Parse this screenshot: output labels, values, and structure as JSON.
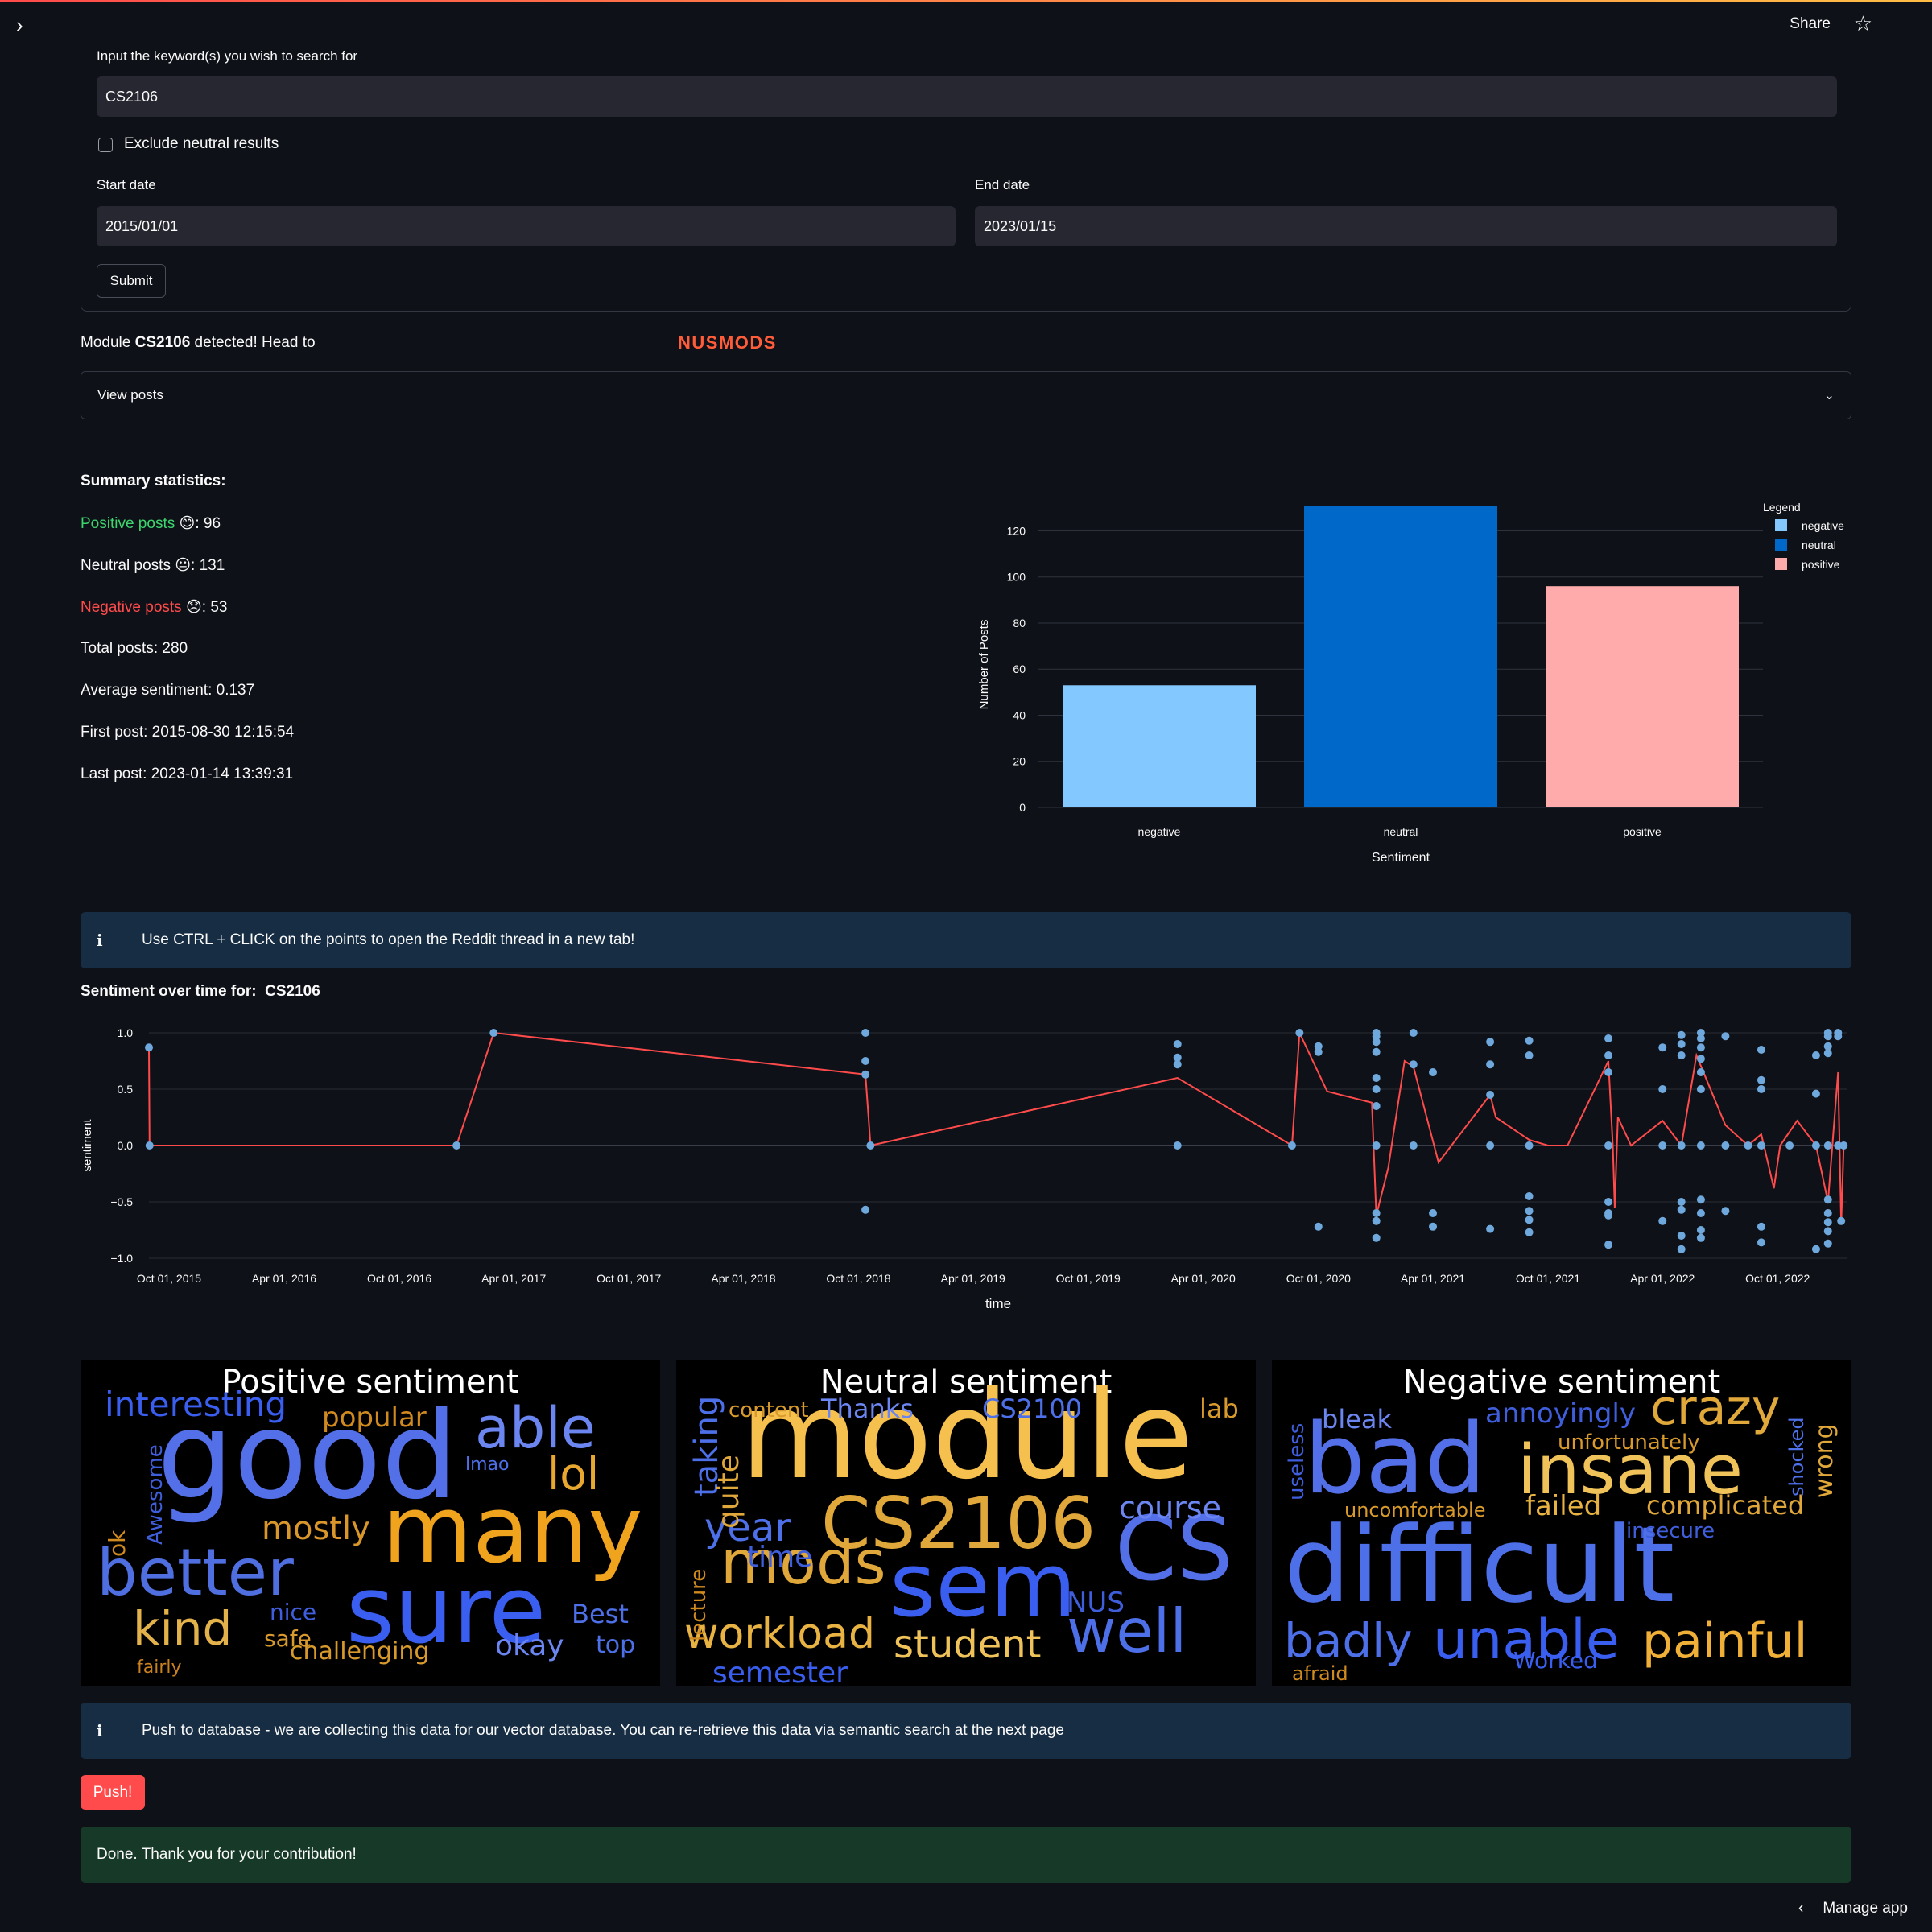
{
  "header": {
    "share": "Share"
  },
  "form": {
    "keyword_label": "Input the keyword(s) you wish to search for",
    "keyword_value": "CS2106",
    "exclude_label": "Exclude neutral results",
    "start_label": "Start date",
    "start_value": "2015/01/01",
    "end_label": "End date",
    "end_value": "2023/01/15",
    "submit": "Submit"
  },
  "detect": {
    "prefix": "Module ",
    "module": "CS2106",
    "suffix": " detected! Head to",
    "link": "NUSMODS"
  },
  "expander": {
    "label": "View posts"
  },
  "summary": {
    "title": "Summary statistics:",
    "positive_label": "Positive posts",
    "positive_emoji": "😊",
    "positive_value": ": 96",
    "neutral_label": "Neutral posts",
    "neutral_emoji": "😐",
    "neutral_value": ": 131",
    "negative_label": "Negative posts",
    "negative_emoji": "😞",
    "negative_value": ": 53",
    "total": "Total posts: 280",
    "average": "Average sentiment: 0.137",
    "first": "First post: 2015-08-30 12:15:54",
    "last": "Last post: 2023-01-14 13:39:31"
  },
  "colors": {
    "negative": "#83c9ff",
    "neutral": "#0068c9",
    "positive": "#ffabab",
    "line": "#ff4b4b",
    "points": "#6ea8dc",
    "accent": "#ff4b4b"
  },
  "chart_data": [
    {
      "type": "bar",
      "categories": [
        "negative",
        "neutral",
        "positive"
      ],
      "values": [
        53,
        131,
        96
      ],
      "xlabel": "Sentiment",
      "ylabel": "Number of Posts",
      "ylim": [
        0,
        131
      ],
      "yticks": [
        0,
        20,
        40,
        60,
        80,
        100,
        120
      ],
      "legend_title": "Legend",
      "legend": [
        "negative",
        "neutral",
        "positive"
      ],
      "legend_position": "top-right",
      "grid": true
    },
    {
      "type": "line",
      "title_prefix": "Sentiment over time for:",
      "title_module": "CS2106",
      "xlabel": "time",
      "ylabel": "sentiment",
      "ylim": [
        -1,
        1
      ],
      "yticks": [
        1.0,
        0.5,
        0.0,
        -0.5,
        -1.0
      ],
      "ytick_labels": [
        "1.0",
        "0.5",
        "0.0",
        "−0.5",
        "−1.0"
      ],
      "xlim": [
        "2015-08-30",
        "2023-01-20"
      ],
      "xticks": [
        "2015-10-01",
        "2016-04-01",
        "2016-10-01",
        "2017-04-01",
        "2017-10-01",
        "2018-04-01",
        "2018-10-01",
        "2019-04-01",
        "2019-10-01",
        "2020-04-01",
        "2020-10-01",
        "2021-04-01",
        "2021-10-01",
        "2022-04-01",
        "2022-10-01"
      ],
      "xtick_labels": [
        "Oct 01, 2015",
        "Apr 01, 2016",
        "Oct 01, 2016",
        "Apr 01, 2017",
        "Oct 01, 2017",
        "Apr 01, 2018",
        "Oct 01, 2018",
        "Apr 01, 2019",
        "Oct 01, 2019",
        "Apr 01, 2020",
        "Oct 01, 2020",
        "Apr 01, 2021",
        "Oct 01, 2021",
        "Apr 01, 2022",
        "Oct 01, 2022"
      ],
      "line": [
        [
          "2015-08-30",
          0.87
        ],
        [
          "2015-08-31",
          0.0
        ],
        [
          "2016-12-31",
          0.0
        ],
        [
          "2017-02-28",
          1.0
        ],
        [
          "2018-10-12",
          0.63
        ],
        [
          "2018-10-20",
          0.0
        ],
        [
          "2020-02-20",
          0.6
        ],
        [
          "2020-08-20",
          0.0
        ],
        [
          "2020-09-01",
          1.0
        ],
        [
          "2020-10-15",
          0.48
        ],
        [
          "2020-12-25",
          0.38
        ],
        [
          "2021-01-01",
          -0.62
        ],
        [
          "2021-01-20",
          -0.2
        ],
        [
          "2021-02-15",
          0.75
        ],
        [
          "2021-03-01",
          0.7
        ],
        [
          "2021-04-10",
          -0.15
        ],
        [
          "2021-07-01",
          0.45
        ],
        [
          "2021-07-10",
          0.25
        ],
        [
          "2021-09-01",
          0.05
        ],
        [
          "2021-10-01",
          0.0
        ],
        [
          "2021-11-01",
          0.0
        ],
        [
          "2022-01-05",
          0.75
        ],
        [
          "2022-01-12",
          0.0
        ],
        [
          "2022-01-15",
          -0.55
        ],
        [
          "2022-01-20",
          0.25
        ],
        [
          "2022-02-10",
          0.0
        ],
        [
          "2022-04-01",
          0.22
        ],
        [
          "2022-05-01",
          0.0
        ],
        [
          "2022-05-25",
          0.8
        ],
        [
          "2022-07-10",
          0.18
        ],
        [
          "2022-08-15",
          0.0
        ],
        [
          "2022-09-05",
          0.1
        ],
        [
          "2022-09-25",
          -0.38
        ],
        [
          "2022-10-05",
          0.0
        ],
        [
          "2022-11-01",
          0.22
        ],
        [
          "2022-12-01",
          0.0
        ],
        [
          "2022-12-20",
          -0.5
        ],
        [
          "2023-01-05",
          0.65
        ],
        [
          "2023-01-10",
          -0.7
        ],
        [
          "2023-01-14",
          0.0
        ]
      ],
      "points": [
        [
          "2015-08-30",
          0.87
        ],
        [
          "2015-08-31",
          0.0
        ],
        [
          "2016-12-31",
          0.0
        ],
        [
          "2017-02-28",
          1.0
        ],
        [
          "2018-10-12",
          1.0
        ],
        [
          "2018-10-12",
          0.75
        ],
        [
          "2018-10-12",
          0.63
        ],
        [
          "2018-10-20",
          0.0
        ],
        [
          "2018-10-12",
          -0.57
        ],
        [
          "2020-02-20",
          0.9
        ],
        [
          "2020-02-20",
          0.78
        ],
        [
          "2020-02-20",
          0.72
        ],
        [
          "2020-02-20",
          0.0
        ],
        [
          "2020-08-20",
          0.0
        ],
        [
          "2020-09-01",
          1.0
        ],
        [
          "2020-10-01",
          0.88
        ],
        [
          "2020-10-01",
          0.83
        ],
        [
          "2020-10-01",
          -0.72
        ],
        [
          "2021-01-01",
          1.0
        ],
        [
          "2021-01-01",
          0.97
        ],
        [
          "2021-01-01",
          0.92
        ],
        [
          "2021-01-01",
          0.83
        ],
        [
          "2021-01-01",
          0.6
        ],
        [
          "2021-01-01",
          0.5
        ],
        [
          "2021-01-01",
          0.35
        ],
        [
          "2021-01-01",
          0.0
        ],
        [
          "2021-01-01",
          -0.6
        ],
        [
          "2021-01-01",
          -0.67
        ],
        [
          "2021-01-01",
          -0.82
        ],
        [
          "2021-03-01",
          1.0
        ],
        [
          "2021-03-01",
          0.72
        ],
        [
          "2021-03-01",
          0.0
        ],
        [
          "2021-04-01",
          0.65
        ],
        [
          "2021-04-01",
          -0.6
        ],
        [
          "2021-04-01",
          -0.72
        ],
        [
          "2021-07-01",
          0.92
        ],
        [
          "2021-07-01",
          0.72
        ],
        [
          "2021-07-01",
          0.45
        ],
        [
          "2021-07-01",
          0.0
        ],
        [
          "2021-07-01",
          -0.74
        ],
        [
          "2021-09-01",
          0.93
        ],
        [
          "2021-09-01",
          0.8
        ],
        [
          "2021-09-01",
          0.0
        ],
        [
          "2021-09-01",
          -0.45
        ],
        [
          "2021-09-01",
          -0.58
        ],
        [
          "2021-09-01",
          -0.66
        ],
        [
          "2021-09-01",
          -0.77
        ],
        [
          "2022-01-05",
          0.95
        ],
        [
          "2022-01-05",
          0.8
        ],
        [
          "2022-01-05",
          0.65
        ],
        [
          "2022-01-05",
          0.0
        ],
        [
          "2022-01-05",
          -0.5
        ],
        [
          "2022-01-05",
          -0.6
        ],
        [
          "2022-01-05",
          -0.62
        ],
        [
          "2022-01-05",
          -0.88
        ],
        [
          "2022-04-01",
          0.87
        ],
        [
          "2022-04-01",
          0.5
        ],
        [
          "2022-04-01",
          0.0
        ],
        [
          "2022-04-01",
          -0.67
        ],
        [
          "2022-05-01",
          0.98
        ],
        [
          "2022-05-01",
          0.9
        ],
        [
          "2022-05-01",
          0.8
        ],
        [
          "2022-05-01",
          0.0
        ],
        [
          "2022-05-01",
          -0.5
        ],
        [
          "2022-05-01",
          -0.57
        ],
        [
          "2022-05-01",
          -0.8
        ],
        [
          "2022-05-01",
          -0.92
        ],
        [
          "2022-06-01",
          1.0
        ],
        [
          "2022-06-01",
          0.95
        ],
        [
          "2022-06-01",
          0.87
        ],
        [
          "2022-06-01",
          0.77
        ],
        [
          "2022-06-01",
          0.65
        ],
        [
          "2022-06-01",
          0.5
        ],
        [
          "2022-06-01",
          0.0
        ],
        [
          "2022-06-01",
          -0.48
        ],
        [
          "2022-06-01",
          -0.6
        ],
        [
          "2022-06-01",
          -0.75
        ],
        [
          "2022-06-01",
          -0.82
        ],
        [
          "2022-07-10",
          0.97
        ],
        [
          "2022-07-10",
          0.0
        ],
        [
          "2022-07-10",
          -0.58
        ],
        [
          "2022-08-15",
          0.0
        ],
        [
          "2022-09-05",
          0.85
        ],
        [
          "2022-09-05",
          0.58
        ],
        [
          "2022-09-05",
          0.5
        ],
        [
          "2022-09-05",
          0.0
        ],
        [
          "2022-09-05",
          -0.72
        ],
        [
          "2022-09-05",
          -0.86
        ],
        [
          "2022-10-20",
          0.0
        ],
        [
          "2022-12-01",
          0.8
        ],
        [
          "2022-12-01",
          0.46
        ],
        [
          "2022-12-01",
          0.0
        ],
        [
          "2022-12-01",
          -0.92
        ],
        [
          "2022-12-20",
          1.0
        ],
        [
          "2022-12-20",
          0.97
        ],
        [
          "2022-12-20",
          0.88
        ],
        [
          "2022-12-20",
          0.82
        ],
        [
          "2022-12-20",
          0.0
        ],
        [
          "2022-12-20",
          -0.48
        ],
        [
          "2022-12-20",
          -0.6
        ],
        [
          "2022-12-20",
          -0.68
        ],
        [
          "2022-12-20",
          -0.76
        ],
        [
          "2022-12-20",
          -0.87
        ],
        [
          "2023-01-05",
          1.0
        ],
        [
          "2023-01-05",
          0.97
        ],
        [
          "2023-01-05",
          0.0
        ],
        [
          "2023-01-10",
          -0.67
        ],
        [
          "2023-01-14",
          0.0
        ]
      ]
    }
  ],
  "wordclouds": {
    "positive": {
      "title": "Positive sentiment",
      "words": [
        [
          "good",
          150,
          "#5470e8",
          95,
          45,
          0
        ],
        [
          "many",
          115,
          "#f0a31c",
          375,
          155,
          0
        ],
        [
          "sure",
          115,
          "#3a5ff0",
          330,
          255,
          0
        ],
        [
          "better",
          80,
          "#4f6ee0",
          20,
          225,
          0
        ],
        [
          "able",
          70,
          "#6b86f0",
          490,
          50,
          0
        ],
        [
          "interesting",
          42,
          "#3a5ff0",
          30,
          35,
          0
        ],
        [
          "popular",
          34,
          "#d08a20",
          300,
          55,
          0
        ],
        [
          "lol",
          55,
          "#e8a830",
          580,
          115,
          0
        ],
        [
          "mostly",
          40,
          "#d9962a",
          225,
          190,
          0
        ],
        [
          "kind",
          58,
          "#e4b24a",
          65,
          305,
          0
        ],
        [
          "Best",
          32,
          "#4d6fe8",
          610,
          300,
          0
        ],
        [
          "nice",
          28,
          "#3f5edb",
          235,
          300,
          0
        ],
        [
          "safe",
          28,
          "#d89a2c",
          228,
          333,
          0
        ],
        [
          "challenging",
          30,
          "#d89a2c",
          260,
          348,
          0
        ],
        [
          "okay",
          36,
          "#6b86f0",
          515,
          338,
          0
        ],
        [
          "top",
          30,
          "#4d6fe8",
          640,
          340,
          0
        ],
        [
          "fairly",
          22,
          "#c88020",
          70,
          372,
          0
        ],
        [
          "lmao",
          22,
          "#4d6fe8",
          478,
          120,
          0
        ],
        [
          "Awesome",
          26,
          "#3f5edb",
          80,
          110,
          -90
        ],
        [
          "ok",
          28,
          "#d08a20",
          32,
          125,
          -90
        ]
      ]
    },
    "neutral": {
      "title": "Neutral sentiment",
      "words": [
        [
          "module",
          150,
          "#f5c04e",
          80,
          20,
          0
        ],
        [
          "CS2106",
          88,
          "#e0a73a",
          180,
          160,
          0
        ],
        [
          "CS",
          110,
          "#5470e8",
          545,
          180,
          0
        ],
        [
          "sem",
          110,
          "#3a5ff0",
          265,
          225,
          0
        ],
        [
          "mods",
          75,
          "#e0a73a",
          55,
          215,
          0
        ],
        [
          "well",
          75,
          "#4d6fe8",
          485,
          300,
          0
        ],
        [
          "workload",
          52,
          "#e8b342",
          10,
          315,
          0
        ],
        [
          "student",
          48,
          "#f0c25a",
          270,
          330,
          0
        ],
        [
          "year",
          48,
          "#4d6fe8",
          35,
          185,
          0
        ],
        [
          "course",
          38,
          "#6b86f0",
          550,
          165,
          0
        ],
        [
          "time",
          36,
          "#3f5edb",
          88,
          228,
          0
        ],
        [
          "semester",
          36,
          "#3a5ff0",
          45,
          372,
          0
        ],
        [
          "content",
          26,
          "#d89a2c",
          65,
          50,
          0
        ],
        [
          "Thanks",
          32,
          "#6b86f0",
          180,
          45,
          0
        ],
        [
          "CS2100",
          32,
          "#4d6fe8",
          380,
          45,
          0
        ],
        [
          "lab",
          32,
          "#d89a2c",
          650,
          45,
          0
        ],
        [
          "NUS",
          34,
          "#3f5edb",
          485,
          285,
          0
        ],
        [
          "taking",
          40,
          "#4d6fe8",
          18,
          50,
          -90
        ],
        [
          "quite",
          36,
          "#e0a73a",
          48,
          90,
          -90
        ],
        [
          "lecture",
          26,
          "#d08a20",
          15,
          230,
          -90
        ]
      ]
    },
    "negative": {
      "title": "Negative sentiment",
      "words": [
        [
          "difficult",
          130,
          "#4d6fe8",
          15,
          190,
          0
        ],
        [
          "bad",
          120,
          "#5470e8",
          40,
          65,
          0
        ],
        [
          "insane",
          85,
          "#f0c25a",
          305,
          95,
          0
        ],
        [
          "crazy",
          60,
          "#e0a73a",
          470,
          30,
          0
        ],
        [
          "unable",
          68,
          "#3a5ff0",
          200,
          315,
          0
        ],
        [
          "painful",
          60,
          "#f0b038",
          460,
          320,
          0
        ],
        [
          "badly",
          58,
          "#4d6fe8",
          15,
          320,
          0
        ],
        [
          "annoyingly",
          34,
          "#3f5edb",
          265,
          50,
          0
        ],
        [
          "unfortunately",
          26,
          "#d89a2c",
          355,
          90,
          0
        ],
        [
          "bleak",
          32,
          "#6b86f0",
          62,
          58,
          0
        ],
        [
          "complicated",
          32,
          "#e0a73a",
          465,
          165,
          0
        ],
        [
          "failed",
          34,
          "#e8b342",
          315,
          165,
          0
        ],
        [
          "uncomfortable",
          24,
          "#d89a2c",
          90,
          175,
          0
        ],
        [
          "insecure",
          26,
          "#3f5edb",
          440,
          200,
          0
        ],
        [
          "afraid",
          24,
          "#d08a20",
          25,
          378,
          0
        ],
        [
          "Worked",
          28,
          "#3a5ff0",
          300,
          360,
          0
        ],
        [
          "useless",
          26,
          "#3f5edb",
          18,
          55,
          -90
        ],
        [
          "shocked",
          24,
          "#4d6fe8",
          640,
          50,
          -90
        ],
        [
          "wrong",
          30,
          "#e0a73a",
          672,
          52,
          -90
        ]
      ]
    }
  },
  "info1": "Use CTRL + CLICK on the points to open the Reddit thread in a new tab!",
  "info2": "Push to database - we are collecting this data for our vector database. You can re-retrieve this data via semantic search at the next page",
  "push_label": "Push!",
  "success": "Done. Thank you for your contribution!",
  "footer": {
    "manage": "Manage app"
  }
}
